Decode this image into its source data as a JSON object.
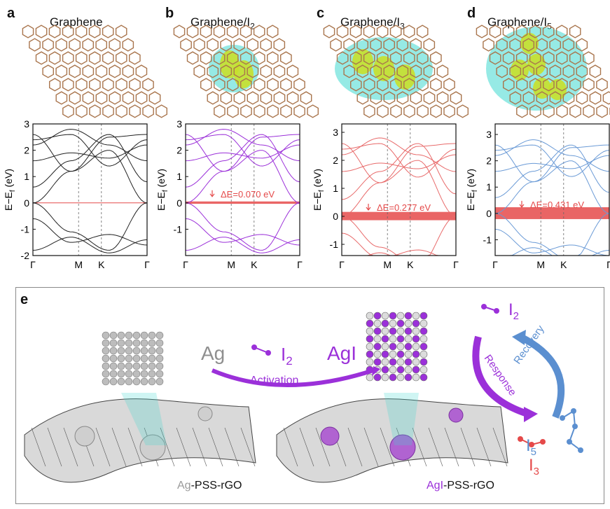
{
  "panels": [
    {
      "letter": "a",
      "title": "Graphene",
      "sub": "",
      "dE": "",
      "ymax": 3,
      "ymin": -2,
      "color": "#222222",
      "yticks": [
        "3",
        "2",
        "1",
        "0",
        "-1",
        "-2"
      ],
      "band": false
    },
    {
      "letter": "b",
      "title": "Graphene/I",
      "sub": "2",
      "dE": "ΔE=0.070 eV",
      "ymax": 3,
      "ymin": -2,
      "color": "#9b30d9",
      "yticks": [
        "3",
        "2",
        "1",
        "0",
        "-1"
      ],
      "band": true
    },
    {
      "letter": "c",
      "title": "Graphene/I",
      "sub": "3",
      "dE": "ΔE=0.277 eV",
      "ymax": 3.3,
      "ymin": -1.4,
      "color": "#e86a6a",
      "yticks": [
        "3",
        "2",
        "1",
        "0",
        "-1"
      ],
      "band": true
    },
    {
      "letter": "d",
      "title": "Graphene/I",
      "sub": "5",
      "dE": "ΔE=0.431 eV",
      "ymax": 3.4,
      "ymin": -1.6,
      "color": "#6a9ad6",
      "yticks": [
        "3",
        "2",
        "1",
        "0",
        "-1"
      ],
      "band": true
    }
  ],
  "axis": {
    "ylabel_main": "E−E",
    "ylabel_sub": "f",
    "ylabel_unit": " (eV)",
    "kpoints": [
      "Γ",
      "M",
      "K",
      "Γ"
    ]
  },
  "panel_e": {
    "letter": "e",
    "ag": "Ag",
    "i2": "I",
    "i2_sub": "2",
    "agi": "AgI",
    "activation": "Activation",
    "response": "Response",
    "recovery": "Recovery",
    "cycle_i2": "I",
    "cycle_i2_sub": "2",
    "i3": "I",
    "i3_sub": "3",
    "i5": "I",
    "i5_sub": "5",
    "left_caption_a": "Ag",
    "left_caption_b": "-PSS-rGO",
    "right_caption_a": "AgI",
    "right_caption_b": "-PSS-rGO"
  },
  "colors": {
    "graphene": "#a9754d",
    "iodine": "#c8e02a",
    "charge": "#3fd9cf",
    "purple": "#9b30d9",
    "red": "#e54a4a",
    "blue": "#5b8fd0",
    "gray": "#9a9a9a"
  }
}
